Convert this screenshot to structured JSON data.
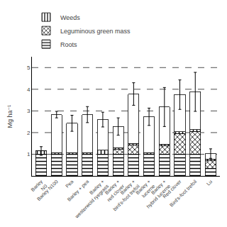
{
  "chart_data": {
    "type": "bar",
    "stacked": true,
    "categories": [
      "Barley\nN0",
      "Barley N100",
      "Pea",
      "Barley + pea",
      "Barley +\nwesterwold ryegrass",
      "Barley +\nred clover",
      "Barley +\nbird's-foot trefoil",
      "Barley +\nlucerne",
      "Barley +\nhybrid lucerne",
      "Red clover",
      "Bird's-foot trefoil",
      "Lu"
    ],
    "series": [
      {
        "name": "Roots",
        "color": "white",
        "marker": "horizontal lines",
        "values": [
          1.0,
          1.0,
          1.0,
          1.0,
          1.0,
          1.0,
          1.0,
          1.0,
          1.0,
          1.0,
          1.0,
          0.35
        ]
      },
      {
        "name": "Leguminous green mass",
        "color": "white",
        "marker": "crosshatch",
        "values": [
          0.0,
          0.0,
          0.0,
          0.0,
          0.0,
          0.22,
          0.42,
          0.0,
          0.38,
          0.95,
          1.05,
          0.35
        ]
      },
      {
        "name": "Weeds",
        "color": "white",
        "marker": "vertical lines",
        "values": [
          0.15,
          0.08,
          0.08,
          0.08,
          0.18,
          0.08,
          0.08,
          0.08,
          0.08,
          0.08,
          0.08,
          0.08
        ]
      },
      {
        "color": "white",
        "marker": "plain",
        "values": [
          0.0,
          1.75,
          1.35,
          1.75,
          1.42,
          0.98,
          2.28,
          1.65,
          1.72,
          1.72,
          1.75,
          0.25
        ]
      }
    ],
    "totals": [
      1.15,
      2.83,
      2.43,
      2.83,
      2.6,
      2.28,
      3.78,
      2.73,
      3.18,
      3.75,
      3.88,
      1.03
    ],
    "error_bars": [
      0.2,
      0.15,
      0.37,
      0.37,
      0.34,
      0.4,
      0.52,
      0.4,
      0.9,
      0.68,
      0.9,
      0.22
    ],
    "dashed_lines": [
      1.0,
      2.0,
      3.0,
      4.0,
      5.0
    ],
    "ylabel": "Mg ha⁻¹",
    "ylim": [
      0,
      5.5
    ],
    "yticks": [
      1,
      2,
      3,
      4,
      5
    ],
    "grid": false,
    "legend": "upper left"
  }
}
